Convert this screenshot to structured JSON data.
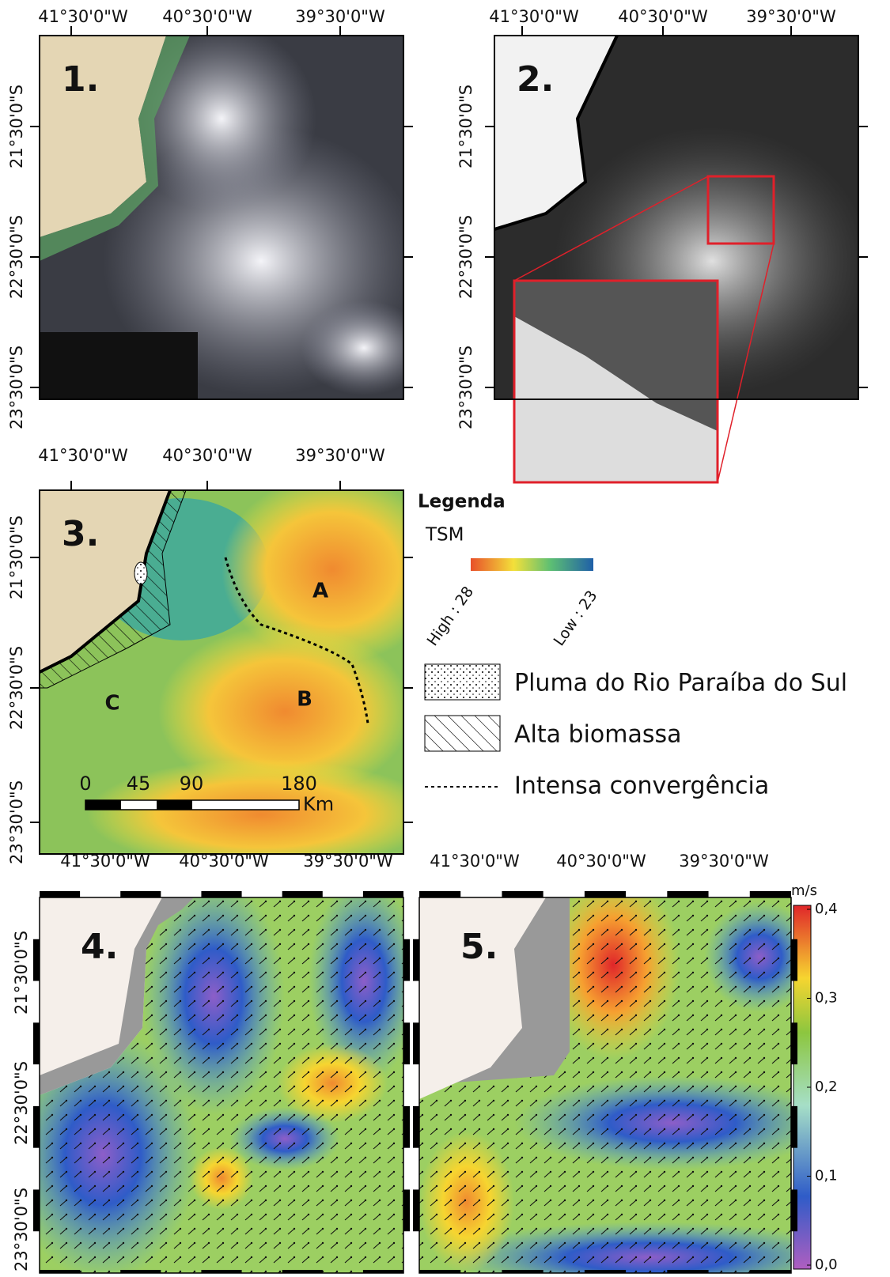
{
  "panels": [
    {
      "label": "1.",
      "lon_labels": [
        "41°30'0\"W",
        "40°30'0\"W",
        "39°30'0\"W"
      ],
      "lat_labels": [
        "21°30'0\"S",
        "22°30'0\"S",
        "23°30'0\"S"
      ]
    },
    {
      "label": "2.",
      "lon_labels": [
        "41°30'0\"W",
        "40°30'0\"W",
        "39°30'0\"W"
      ],
      "lat_labels": [
        "21°30'0\"S",
        "22°30'0\"S",
        "23°30'0\"S"
      ]
    },
    {
      "label": "3.",
      "lon_labels": [
        "41°30'0\"W",
        "40°30'0\"W",
        "39°30'0\"W"
      ],
      "lat_labels": [
        "21°30'0\"S",
        "22°30'0\"S",
        "23°30'0\"S"
      ]
    },
    {
      "label": "4.",
      "lon_labels": [
        "41°30'0\"W",
        "40°30'0\"W",
        "39°30'0\"W"
      ],
      "lat_labels": [
        "21°30'0\"S",
        "22°30'0\"S",
        "23°30'0\"S"
      ]
    },
    {
      "label": "5.",
      "lon_labels": [
        "41°30'0\"W",
        "40°30'0\"W",
        "39°30'0\"W"
      ],
      "lat_labels": []
    }
  ],
  "regions": [
    "A",
    "B",
    "C"
  ],
  "scale_bar": {
    "ticks": [
      "0",
      "45",
      "90",
      "180"
    ],
    "unit": "Km"
  },
  "legend": {
    "title": "Legenda",
    "tsm_label": "TSM",
    "high": "High : 28",
    "low": "Low : 23",
    "items": [
      "Pluma do Rio Paraíba do Sul",
      "Alta biomassa",
      "Intensa convergência"
    ]
  },
  "colorbar": {
    "unit": "m/s",
    "ticks": [
      "0,4",
      "0,3",
      "0,2",
      "0,1",
      "0,0"
    ]
  }
}
